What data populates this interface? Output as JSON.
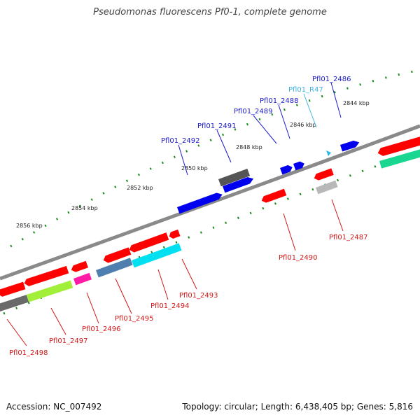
{
  "title": "Pseudomonas fluorescens Pf0-1, complete genome",
  "footer": {
    "accession": "Accession: NC_007492",
    "stats": "Topology: circular; Length: 6,438,405 bp; Genes: 5,816"
  },
  "scale_labels": [
    "2844 kbp",
    "2846 kbp",
    "2848 kbp",
    "2850 kbp",
    "2852 kbp",
    "2854 kbp",
    "2856 kbp"
  ],
  "colors": {
    "backbone": "#8a8a8a",
    "label_top": "#1a1ac8",
    "label_top_rna": "#39b5e0",
    "label_bottom": "#d01818",
    "ruler_tick": "#1d8a1d"
  },
  "genes_top": [
    {
      "id": "Pfl01_2486",
      "label": "Pfl01_2486",
      "color": "#0000ee"
    },
    {
      "id": "Pfl01_R47",
      "label": "Pfl01_R47",
      "color": "#29b6e8"
    },
    {
      "id": "Pfl01_2488",
      "label": "Pfl01_2488",
      "color": "#0000ee"
    },
    {
      "id": "Pfl01_2489",
      "label": "Pfl01_2489",
      "color": "#0000ee"
    },
    {
      "id": "Pfl01_2491",
      "label": "Pfl01_2491",
      "color": "#0000ee"
    },
    {
      "id": "Pfl01_2492",
      "label": "Pfl01_2492",
      "color": "#555555"
    }
  ],
  "genes_bottom": [
    {
      "id": "Pfl01_2487",
      "label": "Pfl01_2487",
      "color": "#ff0000"
    },
    {
      "id": "Pfl01_2490",
      "label": "Pfl01_2490",
      "color": "#ff0000"
    },
    {
      "id": "Pfl01_2493",
      "label": "Pfl01_2493",
      "color": "#ff0000"
    },
    {
      "id": "Pfl01_2494",
      "label": "Pfl01_2494",
      "color": "#ff0000"
    },
    {
      "id": "Pfl01_2495",
      "label": "Pfl01_2495",
      "color": "#ff0000"
    },
    {
      "id": "Pfl01_2496",
      "label": "Pfl01_2496",
      "color": "#ff0000"
    },
    {
      "id": "Pfl01_2497",
      "label": "Pfl01_2497",
      "color": "#ff0000"
    },
    {
      "id": "Pfl01_2498",
      "label": "Pfl01_2498",
      "color": "#ff0000"
    }
  ]
}
